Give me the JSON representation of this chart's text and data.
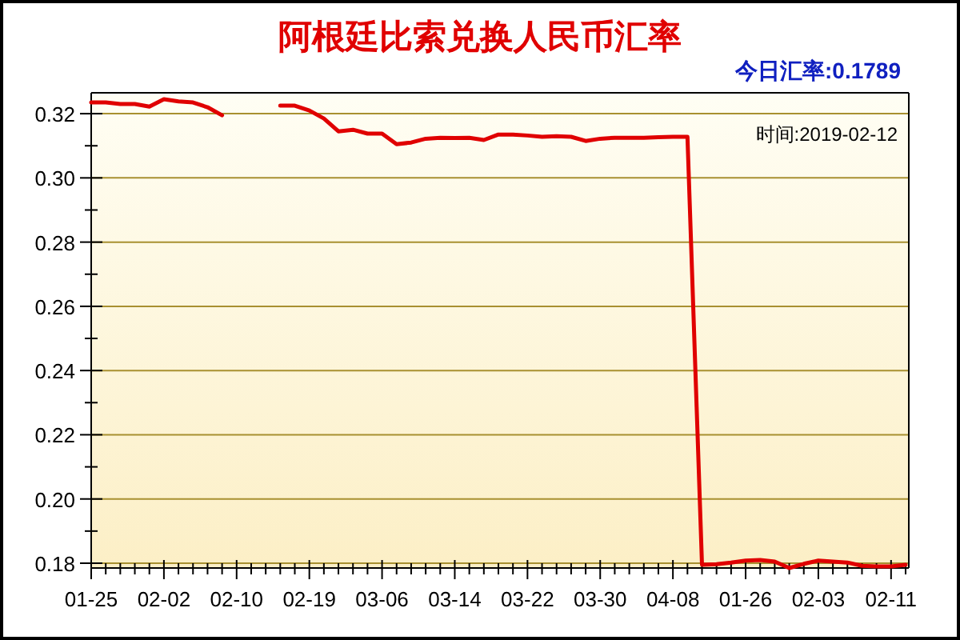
{
  "chart_data": {
    "type": "line",
    "title": "阿根廷比索兑换人民币汇率",
    "subtitle": "今日汇率:0.1789",
    "annotations": [
      "时间:2019-02-12"
    ],
    "categories": [
      "01-25",
      null,
      null,
      null,
      null,
      "02-02",
      null,
      null,
      null,
      null,
      "02-10",
      null,
      null,
      null,
      null,
      "02-19",
      null,
      null,
      null,
      null,
      "03-06",
      null,
      null,
      null,
      null,
      "03-14",
      null,
      null,
      null,
      null,
      "03-22",
      null,
      null,
      null,
      null,
      "03-30",
      null,
      null,
      null,
      null,
      "04-08",
      null,
      null,
      null,
      null,
      "01-26",
      null,
      null,
      null,
      null,
      "02-03",
      null,
      null,
      null,
      null,
      "02-11",
      null
    ],
    "series": [
      {
        "color": "#e00000",
        "values": [
          0.3235,
          0.3235,
          0.323,
          0.323,
          0.3222,
          0.3245,
          0.3238,
          0.3235,
          0.322,
          0.3195,
          null,
          null,
          null,
          0.3225,
          0.3225,
          0.321,
          0.3185,
          0.3145,
          0.315,
          0.3138,
          0.3138,
          0.3105,
          0.311,
          0.3122,
          0.3125,
          0.3124,
          0.3125,
          0.3118,
          0.3135,
          0.3135,
          0.3132,
          0.3128,
          0.313,
          0.3128,
          0.3115,
          0.3122,
          0.3125,
          0.3125,
          0.3125,
          0.3127,
          0.3128,
          0.3128,
          0.1795,
          0.1797,
          0.1802,
          0.1808,
          0.181,
          0.1805,
          0.1785,
          0.1798,
          0.1808,
          0.1805,
          0.1802,
          0.1792,
          0.179,
          0.179,
          0.1795
        ]
      }
    ],
    "ylim": [
      0.1785,
      0.3265
    ],
    "yticks": [
      0.18,
      {
        "value": 0.19,
        "label": null
      },
      {
        "value": 0.2,
        "label": "0.20"
      },
      {
        "value": 0.21,
        "label": null
      },
      0.22,
      {
        "value": 0.23,
        "label": null
      },
      0.24,
      {
        "value": 0.25,
        "label": null
      },
      0.26,
      {
        "value": 0.27,
        "label": null
      },
      0.28,
      {
        "value": 0.29,
        "label": null
      },
      {
        "value": 0.3,
        "label": "0.30"
      },
      {
        "value": 0.31,
        "label": null
      },
      0.32
    ],
    "grid": "y",
    "marker": "none",
    "line_style": "solid"
  }
}
